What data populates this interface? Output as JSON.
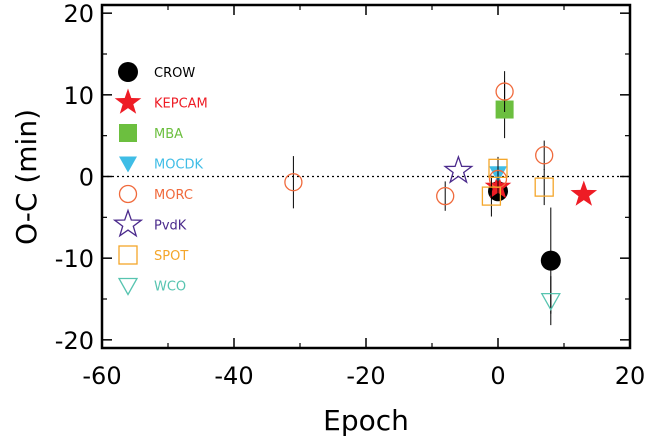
{
  "chart_data": {
    "type": "scatter",
    "xlabel": "Epoch",
    "ylabel": "O-C (min)",
    "xlim": [
      -60,
      20
    ],
    "ylim": [
      -21,
      21
    ],
    "xticks": [
      -60,
      -40,
      -20,
      0,
      20
    ],
    "yticks": [
      -20,
      -10,
      0,
      10,
      20
    ],
    "zero_line": "dotted",
    "legend_position": "left-inside",
    "series": [
      {
        "name": "CROW",
        "color": "#000000",
        "marker": "circle-filled",
        "points": [
          {
            "x": 0,
            "y": -1.8,
            "err": 1.2
          },
          {
            "x": 8,
            "y": -10.3,
            "err": 6.5
          }
        ]
      },
      {
        "name": "KEPCAM",
        "color": "#ee1c25",
        "marker": "star-filled",
        "points": [
          {
            "x": 0,
            "y": -1.3,
            "err": 0.6
          },
          {
            "x": 13,
            "y": -2.2,
            "err": 0.6
          }
        ]
      },
      {
        "name": "MBA",
        "color": "#6cbf3f",
        "marker": "square-filled",
        "points": [
          {
            "x": 1,
            "y": 8.2,
            "err": 3.5
          }
        ]
      },
      {
        "name": "MOCDK",
        "color": "#3fbde6",
        "marker": "triangle-down-filled",
        "points": [
          {
            "x": 0,
            "y": 0.4,
            "err": 2.0
          }
        ]
      },
      {
        "name": "MORC",
        "color": "#f06a3c",
        "marker": "circle-open",
        "points": [
          {
            "x": -31,
            "y": -0.7,
            "err": 3.2
          },
          {
            "x": -8,
            "y": -2.4,
            "err": 1.8
          },
          {
            "x": 0,
            "y": -0.3,
            "err": 2.0
          },
          {
            "x": 1,
            "y": 10.4,
            "err": 2.5
          },
          {
            "x": 7,
            "y": 2.6,
            "err": 1.8
          }
        ]
      },
      {
        "name": "PvdK",
        "color": "#4b2a8c",
        "marker": "star-open",
        "points": [
          {
            "x": -6,
            "y": 0.7,
            "err": 0
          }
        ]
      },
      {
        "name": "SPOT",
        "color": "#f4a62a",
        "marker": "square-open",
        "points": [
          {
            "x": -1,
            "y": -2.4,
            "err": 2.5
          },
          {
            "x": 0,
            "y": 1.0,
            "err": 0
          },
          {
            "x": 7,
            "y": -1.3,
            "err": 2.2
          }
        ]
      },
      {
        "name": "WCO",
        "color": "#57c4b0",
        "marker": "triangle-down-open",
        "points": [
          {
            "x": 8,
            "y": -15.2,
            "err": 3.0
          }
        ]
      }
    ]
  }
}
